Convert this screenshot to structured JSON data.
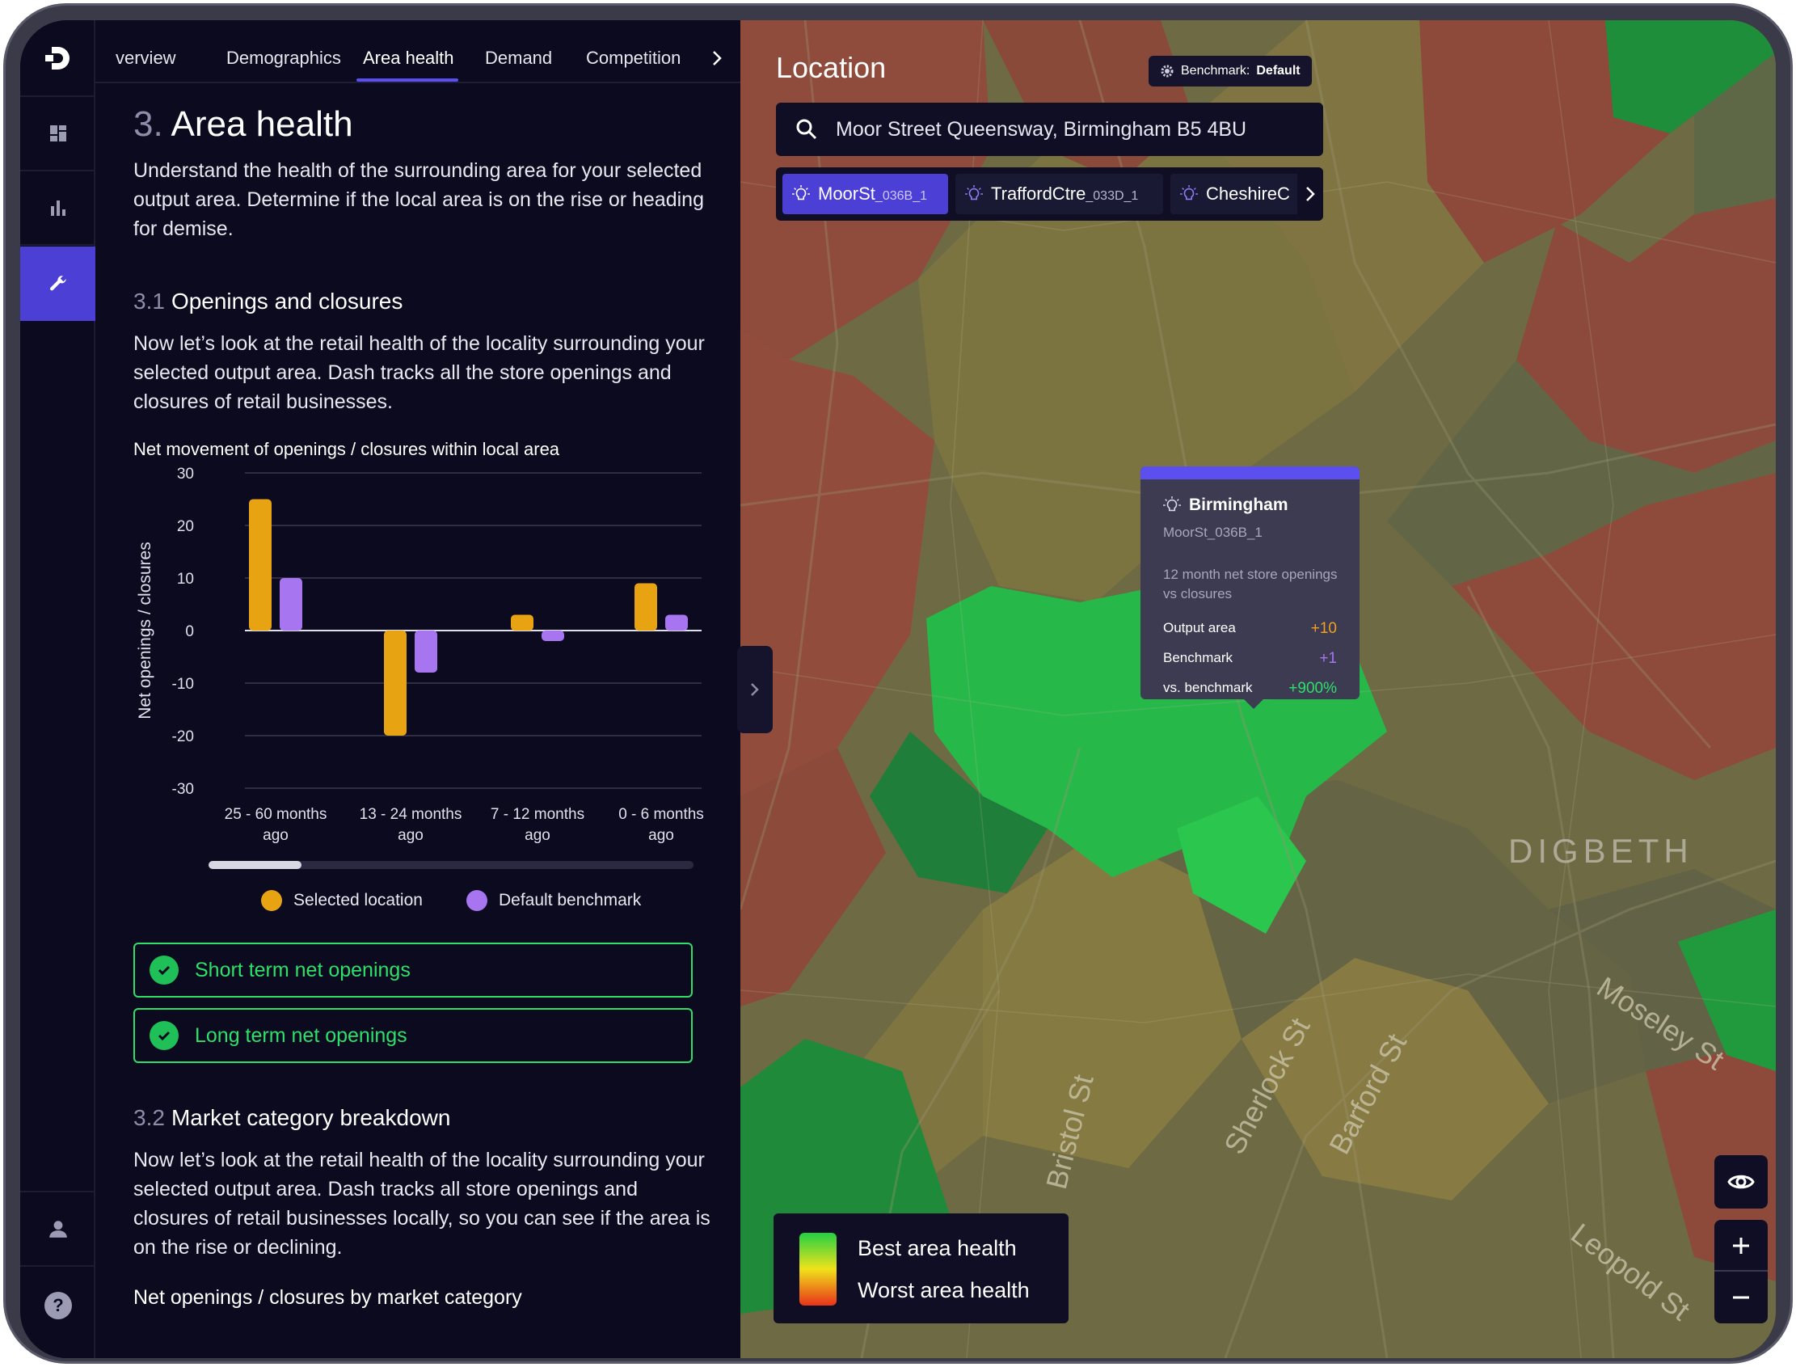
{
  "rail": {
    "items": [
      "logo",
      "dashboard",
      "analytics",
      "tools",
      "profile",
      "help"
    ]
  },
  "tabs": [
    {
      "label": "verview"
    },
    {
      "label": "Demographics"
    },
    {
      "label": "Area health"
    },
    {
      "label": "Demand"
    },
    {
      "label": "Competition"
    }
  ],
  "section": {
    "number": "3.",
    "title": "Area health",
    "intro": "Understand the health of the surrounding area for your selected output area. Determine if the local area is on the rise or heading for demise."
  },
  "sub1": {
    "number": "3.1",
    "title": "Openings and closures",
    "body": "Now let’s look at the retail health of the locality surrounding your selected output area. Dash tracks all the store openings and closures of retail businesses.",
    "chart_title": "Net movement of openings / closures within local area"
  },
  "chart_data": {
    "type": "bar",
    "title": "Net movement of openings / closures within local area",
    "ylabel": "Net openings / closures",
    "xlabel": "",
    "ylim": [
      -30,
      30
    ],
    "yticks": [
      30,
      20,
      10,
      0,
      -10,
      -20,
      -30
    ],
    "categories": [
      [
        "25 - 60 months",
        "ago"
      ],
      [
        "13 - 24 months",
        "ago"
      ],
      [
        "7 - 12 months",
        "ago"
      ],
      [
        "0 - 6 months",
        "ago"
      ]
    ],
    "series": [
      {
        "name": "Selected location",
        "color": "#e8a313",
        "values": [
          25,
          -20,
          3,
          9
        ]
      },
      {
        "name": "Default benchmark",
        "color": "#a875f0",
        "values": [
          10,
          -8,
          -2,
          3
        ]
      }
    ],
    "grid": true,
    "legend": "bottom"
  },
  "legend": {
    "selected": "Selected location",
    "benchmark": "Default benchmark"
  },
  "checks": [
    {
      "label": "Short term net openings"
    },
    {
      "label": "Long term net openings"
    }
  ],
  "sub2": {
    "number": "3.2",
    "title": "Market category breakdown",
    "body": "Now let’s look at the retail health of the locality surrounding your selected output area. Dash tracks  all store openings and closures of retail businesses locally, so you can see if the area is on the rise or declining.",
    "chart_title": "Net openings / closures by market category"
  },
  "map": {
    "title": "Location",
    "benchmark_prefix": "Benchmark:",
    "benchmark_value": "Default",
    "search_value": "Moor Street Queensway, Birmingham B5 4BU",
    "chips": [
      {
        "name": "MoorSt",
        "code": "_036B_1"
      },
      {
        "name": "TraffordCtre",
        "code": "_033D_1"
      },
      {
        "name": "CheshireC",
        "code": ""
      }
    ],
    "tooltip": {
      "title": "Birmingham",
      "subtitle": "MoorSt_036B_1",
      "desc": "12 month net store openings vs closures",
      "rows": [
        {
          "label": "Output area",
          "value": "+10",
          "color": "#f0a020"
        },
        {
          "label": "Benchmark",
          "value": "+1",
          "color": "#a875f0"
        },
        {
          "label": "vs. benchmark",
          "value": "+900%",
          "color": "#2ee06a"
        }
      ]
    },
    "district": "DIGBETH",
    "streets": [
      "Bristol St",
      "Sherlock St",
      "Barford St",
      "Moseley St",
      "Leopold St"
    ],
    "legend_best": "Best area health",
    "legend_worst": "Worst area health"
  }
}
